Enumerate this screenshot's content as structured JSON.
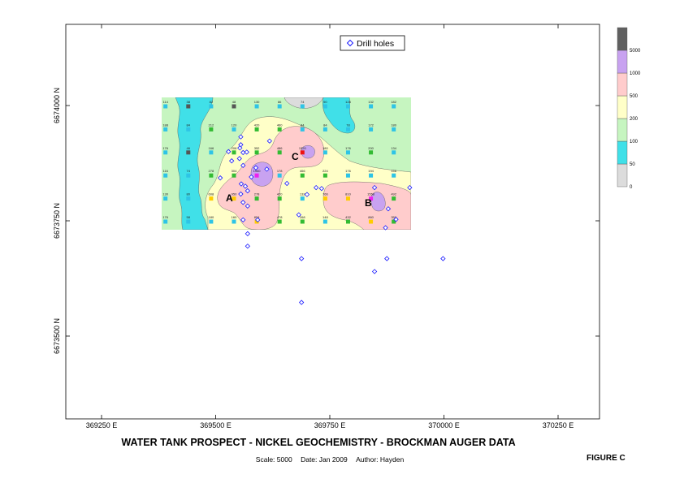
{
  "title": "WATER TANK PROSPECT - NICKEL GEOCHEMISTRY - BROCKMAN AUGER DATA",
  "subtitle": {
    "scale": "Scale: 5000",
    "date": "Date: Jan 2009",
    "author": "Author: Hayden"
  },
  "figure_label": "FIGURE C",
  "legend": {
    "label": "Drill holes",
    "color": "#1a1aff"
  },
  "zone_labels": [
    "A",
    "B",
    "C"
  ],
  "chart_data": {
    "type": "heatmap",
    "x_axis": {
      "ticks": [
        "369250 E",
        "369500 E",
        "369750 E",
        "370000 E",
        "370250 E"
      ]
    },
    "y_axis": {
      "ticks": [
        "6674000 N",
        "6673750 N",
        "6673500 N"
      ]
    },
    "color_scale": {
      "breaks": [
        0,
        50,
        100,
        200,
        500,
        1000,
        5000
      ],
      "colors": [
        "#dcdcdc",
        "#40e0e8",
        "#c6f5c0",
        "#ffffc8",
        "#ffcccc",
        "#c8a2f0",
        "#606060"
      ]
    },
    "samples": [
      {
        "e": 369390,
        "n": 6674000,
        "v": "114"
      },
      {
        "e": 369440,
        "n": 6674000,
        "v": "38"
      },
      {
        "e": 369490,
        "n": 6674000,
        "v": "82"
      },
      {
        "e": 369540,
        "n": 6674000,
        "v": "48"
      },
      {
        "e": 369590,
        "n": 6674000,
        "v": "130"
      },
      {
        "e": 369640,
        "n": 6674000,
        "v": "86"
      },
      {
        "e": 369690,
        "n": 6674000,
        "v": "74"
      },
      {
        "e": 369740,
        "n": 6674000,
        "v": "90"
      },
      {
        "e": 369790,
        "n": 6674000,
        "v": "128"
      },
      {
        "e": 369840,
        "n": 6674000,
        "v": "132"
      },
      {
        "e": 369890,
        "n": 6674000,
        "v": "182"
      },
      {
        "e": 369390,
        "n": 6673950,
        "v": "188"
      },
      {
        "e": 369440,
        "n": 6673950,
        "v": "84"
      },
      {
        "e": 369490,
        "n": 6673950,
        "v": "212"
      },
      {
        "e": 369540,
        "n": 6673950,
        "v": "120"
      },
      {
        "e": 369590,
        "n": 6673950,
        "v": "420"
      },
      {
        "e": 369640,
        "n": 6673950,
        "v": "460"
      },
      {
        "e": 369690,
        "n": 6673950,
        "v": "84"
      },
      {
        "e": 369740,
        "n": 6673950,
        "v": "84"
      },
      {
        "e": 369790,
        "n": 6673950,
        "v": "78"
      },
      {
        "e": 369840,
        "n": 6673950,
        "v": "172"
      },
      {
        "e": 369890,
        "n": 6673950,
        "v": "180"
      },
      {
        "e": 369390,
        "n": 6673900,
        "v": "176"
      },
      {
        "e": 369440,
        "n": 6673900,
        "v": "46"
      },
      {
        "e": 369490,
        "n": 6673900,
        "v": "166"
      },
      {
        "e": 369540,
        "n": 6673900,
        "v": "208"
      },
      {
        "e": 369590,
        "n": 6673900,
        "v": "352"
      },
      {
        "e": 369640,
        "n": 6673900,
        "v": "486"
      },
      {
        "e": 369690,
        "n": 6673900,
        "v": "1320"
      },
      {
        "e": 369740,
        "n": 6673900,
        "v": "180"
      },
      {
        "e": 369790,
        "n": 6673900,
        "v": "176"
      },
      {
        "e": 369840,
        "n": 6673900,
        "v": "200"
      },
      {
        "e": 369890,
        "n": 6673900,
        "v": "134"
      },
      {
        "e": 369390,
        "n": 6673850,
        "v": "116"
      },
      {
        "e": 369440,
        "n": 6673850,
        "v": "74"
      },
      {
        "e": 369490,
        "n": 6673850,
        "v": "278"
      },
      {
        "e": 369540,
        "n": 6673850,
        "v": "304"
      },
      {
        "e": 369590,
        "n": 6673850,
        "v": "1960"
      },
      {
        "e": 369640,
        "n": 6673850,
        "v": "178"
      },
      {
        "e": 369690,
        "n": 6673850,
        "v": "466"
      },
      {
        "e": 369740,
        "n": 6673850,
        "v": "224"
      },
      {
        "e": 369790,
        "n": 6673850,
        "v": "176"
      },
      {
        "e": 369840,
        "n": 6673850,
        "v": "194"
      },
      {
        "e": 369890,
        "n": 6673850,
        "v": "156"
      },
      {
        "e": 369390,
        "n": 6673800,
        "v": "130"
      },
      {
        "e": 369440,
        "n": 6673800,
        "v": "80"
      },
      {
        "e": 369490,
        "n": 6673800,
        "v": "608"
      },
      {
        "e": 369540,
        "n": 6673800,
        "v": "950"
      },
      {
        "e": 369590,
        "n": 6673800,
        "v": "278"
      },
      {
        "e": 369640,
        "n": 6673800,
        "v": "420"
      },
      {
        "e": 369690,
        "n": 6673800,
        "v": "132"
      },
      {
        "e": 369740,
        "n": 6673800,
        "v": "766"
      },
      {
        "e": 369790,
        "n": 6673800,
        "v": "810"
      },
      {
        "e": 369840,
        "n": 6673800,
        "v": "1558"
      },
      {
        "e": 369890,
        "n": 6673800,
        "v": "492"
      },
      {
        "e": 369390,
        "n": 6673750,
        "v": "176"
      },
      {
        "e": 369440,
        "n": 6673750,
        "v": "58"
      },
      {
        "e": 369490,
        "n": 6673750,
        "v": "180"
      },
      {
        "e": 369540,
        "n": 6673750,
        "v": "160"
      },
      {
        "e": 369590,
        "n": 6673750,
        "v": "854"
      },
      {
        "e": 369640,
        "n": 6673750,
        "v": "478"
      },
      {
        "e": 369690,
        "n": 6673750,
        "v": "268"
      },
      {
        "e": 369740,
        "n": 6673750,
        "v": "148"
      },
      {
        "e": 369790,
        "n": 6673750,
        "v": "432"
      },
      {
        "e": 369840,
        "n": 6673750,
        "v": "860"
      },
      {
        "e": 369890,
        "n": 6673750,
        "v": "350"
      }
    ],
    "drill_holes": [
      {
        "e": 369555,
        "n": 6673932
      },
      {
        "e": 369555,
        "n": 6673915
      },
      {
        "e": 369553,
        "n": 6673908
      },
      {
        "e": 369528,
        "n": 6673900
      },
      {
        "e": 369560,
        "n": 6673898
      },
      {
        "e": 369568,
        "n": 6673899
      },
      {
        "e": 369535,
        "n": 6673880
      },
      {
        "e": 369552,
        "n": 6673885
      },
      {
        "e": 369560,
        "n": 6673870
      },
      {
        "e": 369618,
        "n": 6673923
      },
      {
        "e": 369588,
        "n": 6673865
      },
      {
        "e": 369612,
        "n": 6673862
      },
      {
        "e": 369578,
        "n": 6673845
      },
      {
        "e": 369556,
        "n": 6673830
      },
      {
        "e": 369565,
        "n": 6673825
      },
      {
        "e": 369570,
        "n": 6673815
      },
      {
        "e": 369510,
        "n": 6673843
      },
      {
        "e": 369555,
        "n": 6673808
      },
      {
        "e": 369560,
        "n": 6673790
      },
      {
        "e": 369570,
        "n": 6673782
      },
      {
        "e": 369656,
        "n": 6673831
      },
      {
        "e": 369700,
        "n": 6673807
      },
      {
        "e": 369720,
        "n": 6673822
      },
      {
        "e": 369732,
        "n": 6673820
      },
      {
        "e": 369682,
        "n": 6673763
      },
      {
        "e": 369848,
        "n": 6673822
      },
      {
        "e": 369925,
        "n": 6673822
      },
      {
        "e": 369878,
        "n": 6673776
      },
      {
        "e": 369872,
        "n": 6673735
      },
      {
        "e": 369895,
        "n": 6673753
      },
      {
        "e": 369570,
        "n": 6673722
      },
      {
        "e": 369570,
        "n": 6673695
      },
      {
        "e": 369688,
        "n": 6673668
      },
      {
        "e": 369875,
        "n": 6673668
      },
      {
        "e": 369848,
        "n": 6673640
      },
      {
        "e": 369998,
        "n": 6673668
      },
      {
        "e": 369688,
        "n": 6673573
      },
      {
        "e": 369592,
        "n": 6673752
      },
      {
        "e": 369560,
        "n": 6673752
      }
    ]
  }
}
